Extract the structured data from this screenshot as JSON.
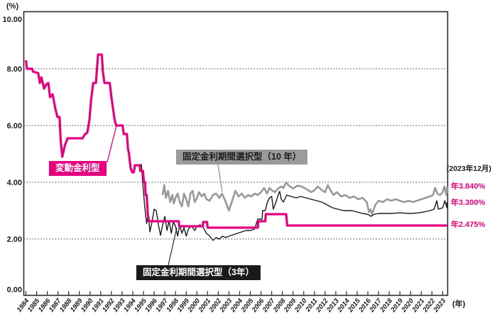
{
  "colors": {
    "pink": "#e4007f",
    "gray": "#999999",
    "line_black": "#1a1a1a",
    "frame": "#2b2b2b",
    "grid": "#444444",
    "callout_gray_bg": "#9a9a9a"
  },
  "axes": {
    "y_unit": "(%)",
    "x_unit": "(年)",
    "y_ticks": [
      {
        "value": 10,
        "label": "10.00"
      },
      {
        "value": 8,
        "label": "8.00"
      },
      {
        "value": 6,
        "label": "6.00"
      },
      {
        "value": 4,
        "label": "4.00"
      },
      {
        "value": 2,
        "label": "2.00"
      },
      {
        "value": 0,
        "label": "0.00"
      }
    ],
    "x_ticks": [
      "1984",
      "1985",
      "1986",
      "1987",
      "1988",
      "1989",
      "1990",
      "1991",
      "1992",
      "1993",
      "1994",
      "1995",
      "1996",
      "1997",
      "1998",
      "1999",
      "2000",
      "2001",
      "2002",
      "2003",
      "2004",
      "2005",
      "2006",
      "2007",
      "2008",
      "2009",
      "2010",
      "2011",
      "2012",
      "2013",
      "2014",
      "2015",
      "2016",
      "2017",
      "2018",
      "2019",
      "2020",
      "2021",
      "2022",
      "2023"
    ]
  },
  "annotations": {
    "as_of": "(2023年12月)",
    "end_labels": [
      {
        "series": "固定金利期間選択型（10年）",
        "text": "年3.840%"
      },
      {
        "series": "固定金利期間選択型（3年）",
        "text": "年3.300%"
      },
      {
        "series": "変動金利型",
        "text": "年2.475%"
      }
    ]
  },
  "chart_data": {
    "type": "line",
    "title": "",
    "xlabel": "年",
    "ylabel": "%",
    "x_range": [
      1984,
      2024
    ],
    "ylim": [
      0,
      10
    ],
    "grid": "horizontal dotted at 2.00, 4.00, 6.00, 8.00",
    "legend_position": "inline callout labels",
    "series": [
      {
        "name": "固定金利期間選択型（10 年）",
        "color": "#999999",
        "stroke_width": 2.6,
        "end_value_label": "年3.840%",
        "points": [
          [
            1996.8,
            3.55
          ],
          [
            1996.95,
            3.9
          ],
          [
            1997.1,
            3.45
          ],
          [
            1997.3,
            3.7
          ],
          [
            1997.5,
            3.3
          ],
          [
            1997.7,
            3.55
          ],
          [
            1997.85,
            3.25
          ],
          [
            1998.0,
            3.45
          ],
          [
            1998.2,
            3.6
          ],
          [
            1998.4,
            3.3
          ],
          [
            1998.6,
            3.15
          ],
          [
            1998.8,
            3.6
          ],
          [
            1999.0,
            3.4
          ],
          [
            1999.2,
            3.15
          ],
          [
            1999.4,
            3.6
          ],
          [
            1999.6,
            3.7
          ],
          [
            1999.8,
            3.3
          ],
          [
            2000.0,
            3.45
          ],
          [
            2000.2,
            3.65
          ],
          [
            2000.45,
            3.5
          ],
          [
            2000.7,
            3.6
          ],
          [
            2000.9,
            3.4
          ],
          [
            2001.2,
            3.35
          ],
          [
            2001.5,
            3.55
          ],
          [
            2001.8,
            3.6
          ],
          [
            2002.1,
            3.45
          ],
          [
            2002.35,
            3.6
          ],
          [
            2002.6,
            3.4
          ],
          [
            2002.8,
            3.2
          ],
          [
            2003.0,
            3.0
          ],
          [
            2003.3,
            3.35
          ],
          [
            2003.6,
            3.7
          ],
          [
            2003.9,
            3.5
          ],
          [
            2004.2,
            3.6
          ],
          [
            2004.5,
            3.45
          ],
          [
            2004.8,
            3.55
          ],
          [
            2005.1,
            3.5
          ],
          [
            2005.4,
            3.6
          ],
          [
            2005.7,
            3.55
          ],
          [
            2006.0,
            3.65
          ],
          [
            2006.3,
            3.8
          ],
          [
            2006.55,
            3.6
          ],
          [
            2006.8,
            3.8
          ],
          [
            2007.0,
            3.72
          ],
          [
            2007.3,
            3.65
          ],
          [
            2007.6,
            3.78
          ],
          [
            2007.9,
            3.85
          ],
          [
            2008.1,
            3.8
          ],
          [
            2008.35,
            4.0
          ],
          [
            2008.6,
            3.88
          ],
          [
            2009.0,
            3.78
          ],
          [
            2009.4,
            3.88
          ],
          [
            2009.8,
            3.85
          ],
          [
            2010.3,
            3.75
          ],
          [
            2010.7,
            3.65
          ],
          [
            2011.0,
            3.72
          ],
          [
            2011.3,
            3.85
          ],
          [
            2011.7,
            3.72
          ],
          [
            2012.0,
            3.65
          ],
          [
            2012.25,
            3.9
          ],
          [
            2012.5,
            3.72
          ],
          [
            2012.8,
            3.55
          ],
          [
            2013.1,
            3.65
          ],
          [
            2013.5,
            3.5
          ],
          [
            2013.9,
            3.55
          ],
          [
            2014.3,
            3.45
          ],
          [
            2014.7,
            3.5
          ],
          [
            2015.1,
            3.4
          ],
          [
            2015.5,
            3.45
          ],
          [
            2015.9,
            3.3
          ],
          [
            2016.1,
            2.95
          ],
          [
            2016.25,
            3.05
          ],
          [
            2016.4,
            2.88
          ],
          [
            2016.7,
            3.2
          ],
          [
            2017.0,
            3.35
          ],
          [
            2017.4,
            3.3
          ],
          [
            2017.8,
            3.4
          ],
          [
            2018.2,
            3.35
          ],
          [
            2018.6,
            3.4
          ],
          [
            2019.0,
            3.35
          ],
          [
            2019.4,
            3.3
          ],
          [
            2019.8,
            3.35
          ],
          [
            2020.2,
            3.3
          ],
          [
            2020.6,
            3.35
          ],
          [
            2021.0,
            3.4
          ],
          [
            2021.4,
            3.45
          ],
          [
            2021.8,
            3.5
          ],
          [
            2022.1,
            3.55
          ],
          [
            2022.3,
            3.8
          ],
          [
            2022.5,
            3.6
          ],
          [
            2022.75,
            3.55
          ],
          [
            2023.0,
            3.65
          ],
          [
            2023.15,
            3.85
          ],
          [
            2023.35,
            3.55
          ],
          [
            2023.6,
            3.65
          ],
          [
            2023.97,
            3.84
          ]
        ]
      },
      {
        "name": "固定金利期間選択型（3年）",
        "color": "#1a1a1a",
        "stroke_width": 1.4,
        "end_value_label": "年3.300%",
        "points": [
          [
            1994.8,
            4.65
          ],
          [
            1994.95,
            3.9
          ],
          [
            1995.1,
            3.2
          ],
          [
            1995.2,
            2.85
          ],
          [
            1995.3,
            2.55
          ],
          [
            1995.45,
            2.88
          ],
          [
            1995.6,
            2.25
          ],
          [
            1995.8,
            2.6
          ],
          [
            1996.0,
            3.05
          ],
          [
            1996.2,
            3.0
          ],
          [
            1996.4,
            2.5
          ],
          [
            1996.6,
            2.13
          ],
          [
            1996.8,
            2.5
          ],
          [
            1997.0,
            2.8
          ],
          [
            1997.2,
            2.3
          ],
          [
            1997.4,
            2.65
          ],
          [
            1997.6,
            2.2
          ],
          [
            1997.8,
            2.6
          ],
          [
            1998.0,
            2.45
          ],
          [
            1998.2,
            2.1
          ],
          [
            1998.4,
            2.5
          ],
          [
            1998.6,
            2.2
          ],
          [
            1998.8,
            2.4
          ],
          [
            1999.0,
            2.1
          ],
          [
            1999.2,
            2.35
          ],
          [
            1999.5,
            2.45
          ],
          [
            1999.8,
            2.3
          ],
          [
            2000.0,
            2.45
          ],
          [
            2000.3,
            2.5
          ],
          [
            2000.6,
            2.4
          ],
          [
            2000.9,
            2.2
          ],
          [
            2001.2,
            2.1
          ],
          [
            2001.5,
            1.95
          ],
          [
            2001.8,
            2.05
          ],
          [
            2002.1,
            2.0
          ],
          [
            2002.4,
            2.1
          ],
          [
            2002.7,
            2.05
          ],
          [
            2003.0,
            2.1
          ],
          [
            2003.4,
            2.15
          ],
          [
            2003.8,
            2.2
          ],
          [
            2004.2,
            2.25
          ],
          [
            2004.6,
            2.3
          ],
          [
            2005.0,
            2.3
          ],
          [
            2005.4,
            2.35
          ],
          [
            2005.7,
            2.7
          ],
          [
            2006.1,
            2.7
          ],
          [
            2006.15,
            3.0
          ],
          [
            2006.4,
            3.0
          ],
          [
            2006.6,
            3.3
          ],
          [
            2006.8,
            3.45
          ],
          [
            2007.0,
            3.5
          ],
          [
            2007.15,
            3.05
          ],
          [
            2007.4,
            3.3
          ],
          [
            2007.6,
            3.55
          ],
          [
            2007.75,
            3.68
          ],
          [
            2007.9,
            3.4
          ],
          [
            2008.1,
            3.3
          ],
          [
            2008.4,
            3.55
          ],
          [
            2008.8,
            3.5
          ],
          [
            2009.3,
            3.45
          ],
          [
            2009.7,
            3.5
          ],
          [
            2010.2,
            3.45
          ],
          [
            2010.7,
            3.4
          ],
          [
            2011.2,
            3.35
          ],
          [
            2011.7,
            3.3
          ],
          [
            2012.2,
            3.2
          ],
          [
            2012.7,
            3.1
          ],
          [
            2013.2,
            3.05
          ],
          [
            2013.7,
            3.0
          ],
          [
            2014.5,
            3.0
          ],
          [
            2015.0,
            2.95
          ],
          [
            2015.5,
            2.9
          ],
          [
            2016.0,
            2.87
          ],
          [
            2016.3,
            2.8
          ],
          [
            2016.6,
            2.87
          ],
          [
            2017.0,
            2.9
          ],
          [
            2018.0,
            2.9
          ],
          [
            2019.0,
            2.92
          ],
          [
            2020.0,
            2.9
          ],
          [
            2020.7,
            2.92
          ],
          [
            2021.2,
            2.95
          ],
          [
            2021.8,
            3.0
          ],
          [
            2022.2,
            3.05
          ],
          [
            2022.45,
            3.35
          ],
          [
            2022.6,
            3.05
          ],
          [
            2023.0,
            3.1
          ],
          [
            2023.2,
            3.35
          ],
          [
            2023.4,
            3.1
          ],
          [
            2023.7,
            3.2
          ],
          [
            2023.97,
            3.3
          ]
        ]
      },
      {
        "name": "変動金利型",
        "color": "#e4007f",
        "stroke_width": 3.2,
        "end_value_label": "年2.475%",
        "points": [
          [
            1984.0,
            8.3
          ],
          [
            1984.1,
            8.0
          ],
          [
            1984.6,
            8.0
          ],
          [
            1984.65,
            7.9
          ],
          [
            1985.15,
            7.85
          ],
          [
            1985.3,
            7.5
          ],
          [
            1985.45,
            7.7
          ],
          [
            1985.7,
            7.3
          ],
          [
            1985.9,
            7.45
          ],
          [
            1986.1,
            7.5
          ],
          [
            1986.25,
            7.0
          ],
          [
            1986.5,
            7.1
          ],
          [
            1986.75,
            6.6
          ],
          [
            1986.95,
            6.3
          ],
          [
            1987.15,
            6.3
          ],
          [
            1987.25,
            5.5
          ],
          [
            1987.4,
            4.9
          ],
          [
            1987.65,
            5.3
          ],
          [
            1987.9,
            5.55
          ],
          [
            1989.3,
            5.55
          ],
          [
            1989.5,
            5.68
          ],
          [
            1989.75,
            5.75
          ],
          [
            1989.95,
            6.2
          ],
          [
            1990.1,
            6.9
          ],
          [
            1990.3,
            7.5
          ],
          [
            1990.55,
            7.5
          ],
          [
            1990.65,
            8.0
          ],
          [
            1990.75,
            8.5
          ],
          [
            1991.1,
            8.5
          ],
          [
            1991.2,
            7.9
          ],
          [
            1991.35,
            7.5
          ],
          [
            1991.85,
            7.5
          ],
          [
            1992.0,
            7.0
          ],
          [
            1992.15,
            6.6
          ],
          [
            1992.3,
            6.2
          ],
          [
            1992.45,
            6.0
          ],
          [
            1993.05,
            6.0
          ],
          [
            1993.15,
            5.7
          ],
          [
            1993.45,
            5.7
          ],
          [
            1993.55,
            5.2
          ],
          [
            1993.65,
            5.0
          ],
          [
            1993.8,
            4.5
          ],
          [
            1993.95,
            4.35
          ],
          [
            1994.1,
            4.35
          ],
          [
            1994.2,
            4.6
          ],
          [
            1994.65,
            4.6
          ],
          [
            1994.7,
            4.4
          ],
          [
            1994.95,
            4.4
          ],
          [
            1995.05,
            4.0
          ],
          [
            1995.15,
            4.0
          ],
          [
            1995.2,
            3.55
          ],
          [
            1995.3,
            3.55
          ],
          [
            1995.4,
            2.9
          ],
          [
            1995.5,
            2.625
          ],
          [
            1998.3,
            2.625
          ],
          [
            1998.35,
            2.45
          ],
          [
            2000.55,
            2.45
          ],
          [
            2000.6,
            2.6
          ],
          [
            2000.95,
            2.6
          ],
          [
            2001.0,
            2.4
          ],
          [
            2005.7,
            2.4
          ],
          [
            2005.75,
            2.625
          ],
          [
            2006.4,
            2.625
          ],
          [
            2006.45,
            2.875
          ],
          [
            2008.35,
            2.875
          ],
          [
            2008.45,
            2.475
          ],
          [
            2023.97,
            2.475
          ]
        ]
      }
    ]
  }
}
